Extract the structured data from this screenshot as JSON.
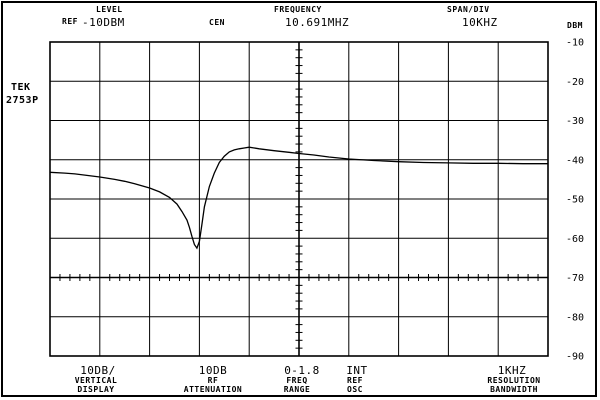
{
  "header": {
    "ref_label": "REF",
    "level_label": "LEVEL",
    "level_value": "-10DBM",
    "cen_label": "CEN",
    "frequency_label": "FREQUENCY",
    "frequency_value": "10.691MHZ",
    "span_label": "SPAN/DIV",
    "span_value": "10KHZ",
    "unit_label": "DBM"
  },
  "instrument": {
    "brand": "TEK",
    "model": "2753P"
  },
  "footer": {
    "vertical_display_value": "10DB/",
    "vertical_display_label_1": "VERTICAL",
    "vertical_display_label_2": "DISPLAY",
    "rf_attenuation_value": "10DB",
    "rf_attenuation_label_1": "RF",
    "rf_attenuation_label_2": "ATTENUATION",
    "freq_range_value": "0-1.8",
    "freq_range_label_1": "FREQ",
    "freq_range_label_2": "RANGE",
    "ref_osc_value": "INT",
    "ref_osc_label_1": "REF",
    "ref_osc_label_2": "OSC",
    "resolution_bandwidth_value": "1KHZ",
    "resolution_bandwidth_label_1": "RESOLUTION",
    "resolution_bandwidth_label_2": "BANDWIDTH"
  },
  "chart_data": {
    "type": "line",
    "title": "",
    "xlabel": "",
    "ylabel": "DBM",
    "xlim": [
      -50,
      50
    ],
    "ylim": [
      -90,
      -10
    ],
    "x_unit": "kHz offset from center 10.691MHZ",
    "y_ticks": [
      -10,
      -20,
      -30,
      -40,
      -50,
      -60,
      -70,
      -80,
      -90
    ],
    "y_tick_labels": [
      "-10",
      "-20",
      "-30",
      "-40",
      "-50",
      "-60",
      "-70",
      "-80",
      "-90"
    ],
    "grid": true,
    "series": [
      {
        "name": "",
        "x": [
          -50,
          -47,
          -45,
          -43,
          -40,
          -37,
          -35,
          -33,
          -30,
          -28,
          -26,
          -24.5,
          -23.5,
          -22.5,
          -22,
          -21.5,
          -21,
          -20.5,
          -20,
          -19.5,
          -19,
          -18,
          -17,
          -16,
          -15,
          -14,
          -13,
          -12,
          -11,
          -10,
          -8,
          -5,
          -2,
          0,
          3,
          6,
          10,
          15,
          20,
          25,
          30,
          35,
          40,
          45,
          50
        ],
        "y": [
          -43.2,
          -43.4,
          -43.6,
          -43.9,
          -44.4,
          -45.0,
          -45.5,
          -46.1,
          -47.2,
          -48.2,
          -49.6,
          -51.3,
          -53.2,
          -55.4,
          -57.2,
          -59.5,
          -61.6,
          -62.5,
          -60.8,
          -56.5,
          -52.0,
          -46.8,
          -43.4,
          -40.7,
          -39.1,
          -38.0,
          -37.5,
          -37.2,
          -37.0,
          -36.8,
          -37.2,
          -37.7,
          -38.1,
          -38.4,
          -38.8,
          -39.3,
          -39.8,
          -40.2,
          -40.5,
          -40.7,
          -40.8,
          -40.9,
          -40.9,
          -41.0,
          -41.0
        ]
      }
    ]
  }
}
